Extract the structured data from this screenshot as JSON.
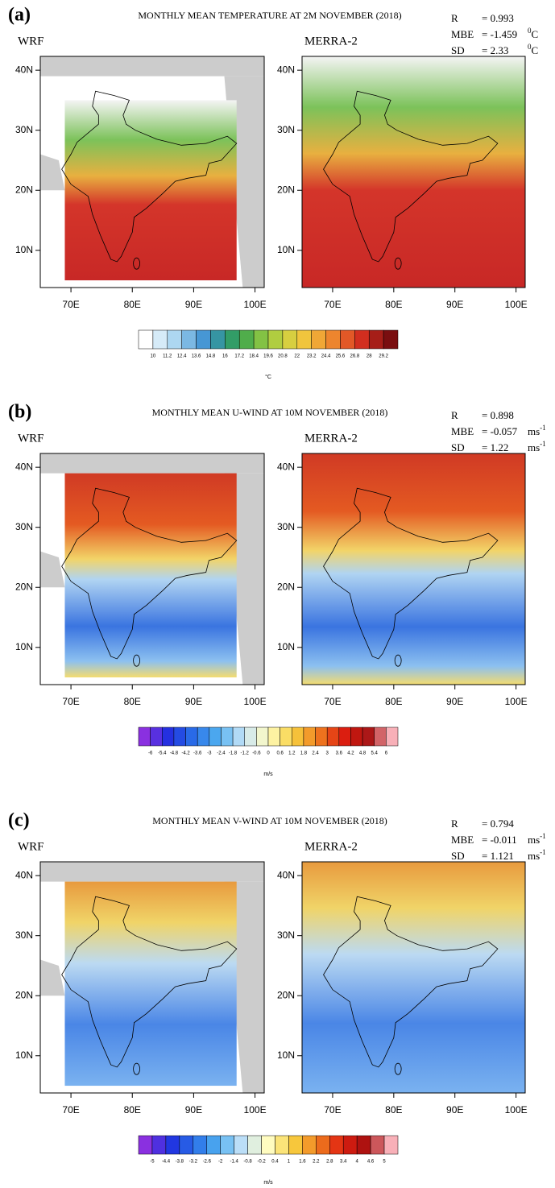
{
  "panels": [
    {
      "label": "(a)",
      "title": "MONTHLY MEAN TEMPERATURE AT 2M NOVEMBER (2018)",
      "stats": [
        {
          "name": "R",
          "value": "= 0.993"
        },
        {
          "name": "MBE",
          "value": "= -1.459",
          "unit": [
            {
              "text": "0",
              "sup": true
            },
            {
              "text": "C"
            }
          ]
        },
        {
          "name": "SD",
          "value": "= 2.33",
          "unit": [
            {
              "text": "0",
              "sup": true
            },
            {
              "text": "C"
            }
          ]
        }
      ],
      "maps": [
        {
          "title": "WRF",
          "lat_labels": [
            "40N",
            "30N",
            "20N",
            "10N"
          ],
          "lon_labels": [
            "70E",
            "80E",
            "90E",
            "100E"
          ]
        },
        {
          "title": "MERRA-2",
          "lat_labels": [
            "40N",
            "30N",
            "20N",
            "10N"
          ],
          "lon_labels": [
            "70E",
            "80E",
            "90E",
            "100E"
          ]
        }
      ],
      "colorbar": {
        "ticks": [
          10,
          11.2,
          12.4,
          13.6,
          14.8,
          16,
          17.2,
          18.4,
          19.6,
          20.8,
          22,
          23.2,
          24.4,
          25.6,
          26.8,
          28,
          29.2
        ],
        "colors": [
          "#ffffff",
          "#a8d4f0",
          "#3a8fd0",
          "#30a050",
          "#9ccc40",
          "#f0d040",
          "#f09030",
          "#d83020",
          "#7a0e10"
        ],
        "unit": "°C"
      }
    },
    {
      "label": "(b)",
      "title": "MONTHLY MEAN U-WIND AT 10M NOVEMBER (2018)",
      "stats": [
        {
          "name": "R",
          "value": "= 0.898"
        },
        {
          "name": "MBE",
          "value": "= -0.057",
          "unit": [
            {
              "text": "ms"
            },
            {
              "text": "-1",
              "sup": true
            }
          ]
        },
        {
          "name": "SD",
          "value": "= 1.22",
          "unit": [
            {
              "text": "ms"
            },
            {
              "text": "-1",
              "sup": true
            }
          ]
        }
      ],
      "maps": [
        {
          "title": "WRF",
          "lat_labels": [
            "40N",
            "30N",
            "20N",
            "10N"
          ],
          "lon_labels": [
            "70E",
            "80E",
            "90E",
            "100E"
          ]
        },
        {
          "title": "MERRA-2",
          "lat_labels": [
            "40N",
            "30N",
            "20N",
            "10N"
          ],
          "lon_labels": [
            "70E",
            "80E",
            "90E",
            "100E"
          ]
        }
      ],
      "colorbar": {
        "ticks": [
          -6,
          -5.4,
          -4.8,
          -4.2,
          -3.6,
          -3,
          -2.4,
          -1.8,
          -1.2,
          -0.6,
          0,
          0.6,
          1.2,
          1.8,
          2.4,
          3,
          3.6,
          4.2,
          4.8,
          5.4,
          6
        ],
        "colors": [
          "#8a30e0",
          "#2030e0",
          "#2a70e8",
          "#50b0f0",
          "#c8e4f8",
          "#fffcc0",
          "#f8d040",
          "#f08020",
          "#e02010",
          "#a81010",
          "#f8b0b8"
        ],
        "unit": "m/s"
      }
    },
    {
      "label": "(c)",
      "title": "MONTHLY MEAN V-WIND AT 10M NOVEMBER (2018)",
      "stats": [
        {
          "name": "R",
          "value": "= 0.794"
        },
        {
          "name": "MBE",
          "value": "= -0.011",
          "unit": [
            {
              "text": "ms"
            },
            {
              "text": "-1",
              "sup": true
            }
          ]
        },
        {
          "name": "SD",
          "value": "= 1.121",
          "unit": [
            {
              "text": "ms"
            },
            {
              "text": "-1",
              "sup": true
            }
          ]
        }
      ],
      "maps": [
        {
          "title": "WRF",
          "lat_labels": [
            "40N",
            "30N",
            "20N",
            "10N"
          ],
          "lon_labels": [
            "70E",
            "80E",
            "90E",
            "100E"
          ]
        },
        {
          "title": "MERRA-2",
          "lat_labels": [
            "40N",
            "30N",
            "20N",
            "10N"
          ],
          "lon_labels": [
            "70E",
            "80E",
            "90E",
            "100E"
          ]
        }
      ],
      "colorbar": {
        "ticks": [
          -5,
          -4.4,
          -3.8,
          -3.2,
          -2.6,
          -2,
          -1.4,
          -0.8,
          -0.2,
          0.4,
          1,
          1.6,
          2.2,
          2.8,
          3.4,
          4,
          4.6,
          5
        ],
        "colors": [
          "#8a30e0",
          "#2030e0",
          "#2a70e8",
          "#50b0f0",
          "#c8e4f8",
          "#fffcc0",
          "#f8d040",
          "#f08020",
          "#e02010",
          "#a81010",
          "#f8b0b8"
        ],
        "unit": "m/s"
      }
    }
  ]
}
